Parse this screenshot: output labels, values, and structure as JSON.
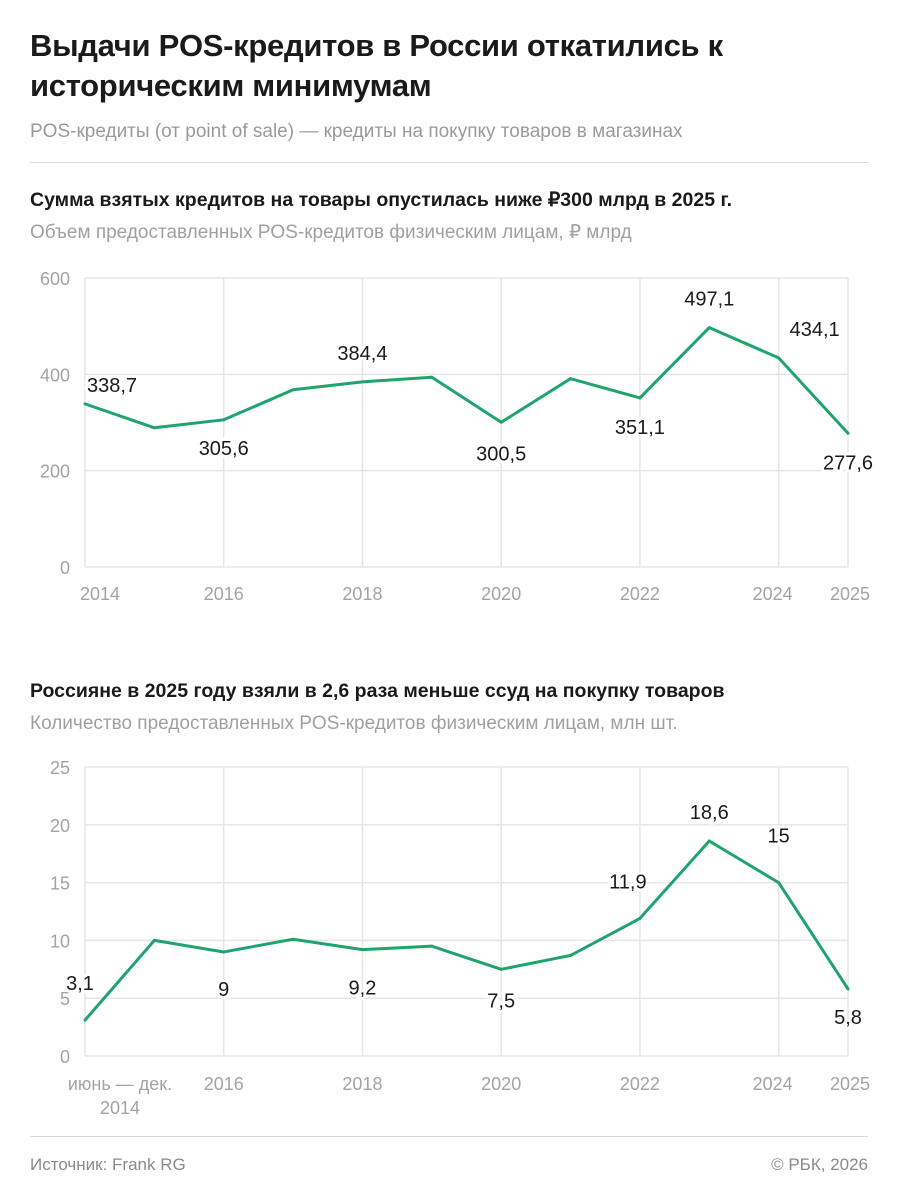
{
  "header": {
    "title": "Выдачи POS-кредитов в России откатились к историческим минимумам",
    "subtitle": "POS-кредиты (от point of sale) — кредиты на покупку товаров в магазинах"
  },
  "footer": {
    "source": "Источник: Frank RG",
    "copyright": "© РБК, 2026"
  },
  "colors": {
    "line": "#1fa46d",
    "grid": "#e6e6e6"
  },
  "chart_data": [
    {
      "type": "line",
      "title": "Сумма взятых кредитов на товары опустилась ниже ₽300 млрд в 2025 г.",
      "subtitle": "Объем предоставленных POS-кредитов физическим лицам, ₽ млрд",
      "x": [
        2014,
        2015,
        2016,
        2017,
        2018,
        2019,
        2020,
        2021,
        2022,
        2023,
        2024,
        2025
      ],
      "values": [
        338.7,
        289,
        305.6,
        368,
        384.4,
        394,
        300.5,
        391,
        351.1,
        497.1,
        434.1,
        277.6
      ],
      "data_labels": [
        "338,7",
        null,
        "305,6",
        null,
        "384,4",
        null,
        "300,5",
        null,
        "351,1",
        "497,1",
        "434,1",
        "277,6"
      ],
      "xticks": [
        {
          "x": 2014,
          "label": "2014"
        },
        {
          "x": 2016,
          "label": "2016"
        },
        {
          "x": 2018,
          "label": "2018"
        },
        {
          "x": 2020,
          "label": "2020"
        },
        {
          "x": 2022,
          "label": "2022"
        },
        {
          "x": 2024,
          "label": "2024"
        },
        {
          "x": 2025,
          "label": "2025"
        }
      ],
      "yticks": [
        {
          "y": 0,
          "label": "0"
        },
        {
          "y": 200,
          "label": "200"
        },
        {
          "y": 400,
          "label": "400"
        },
        {
          "y": 600,
          "label": "600"
        }
      ],
      "ylim": [
        0,
        600
      ],
      "xlim": [
        2014,
        2025
      ],
      "grid": true
    },
    {
      "type": "line",
      "title": "Россияне в 2025 году взяли в 2,6 раза меньше ссуд на покупку товаров",
      "subtitle": "Количество предоставленных POS-кредитов физическим лицам, млн шт.",
      "x": [
        2014,
        2015,
        2016,
        2017,
        2018,
        2019,
        2020,
        2021,
        2022,
        2023,
        2024,
        2025
      ],
      "values": [
        3.1,
        10,
        9,
        10.1,
        9.2,
        9.5,
        7.5,
        8.7,
        11.9,
        18.6,
        15,
        5.8
      ],
      "data_labels": [
        "3,1",
        null,
        "9",
        null,
        "9,2",
        null,
        "7,5",
        null,
        "11,9",
        "18,6",
        "15",
        "5,8"
      ],
      "xticks": [
        {
          "x": 2014,
          "label": "июнь — дек.",
          "label2": "2014"
        },
        {
          "x": 2016,
          "label": "2016"
        },
        {
          "x": 2018,
          "label": "2018"
        },
        {
          "x": 2020,
          "label": "2020"
        },
        {
          "x": 2022,
          "label": "2022"
        },
        {
          "x": 2024,
          "label": "2024"
        },
        {
          "x": 2025,
          "label": "2025"
        }
      ],
      "yticks": [
        {
          "y": 0,
          "label": "0"
        },
        {
          "y": 5,
          "label": "5"
        },
        {
          "y": 10,
          "label": "10"
        },
        {
          "y": 15,
          "label": "15"
        },
        {
          "y": 20,
          "label": "20"
        },
        {
          "y": 25,
          "label": "25"
        }
      ],
      "ylim": [
        0,
        25
      ],
      "xlim": [
        2014,
        2025
      ],
      "grid": true
    }
  ]
}
